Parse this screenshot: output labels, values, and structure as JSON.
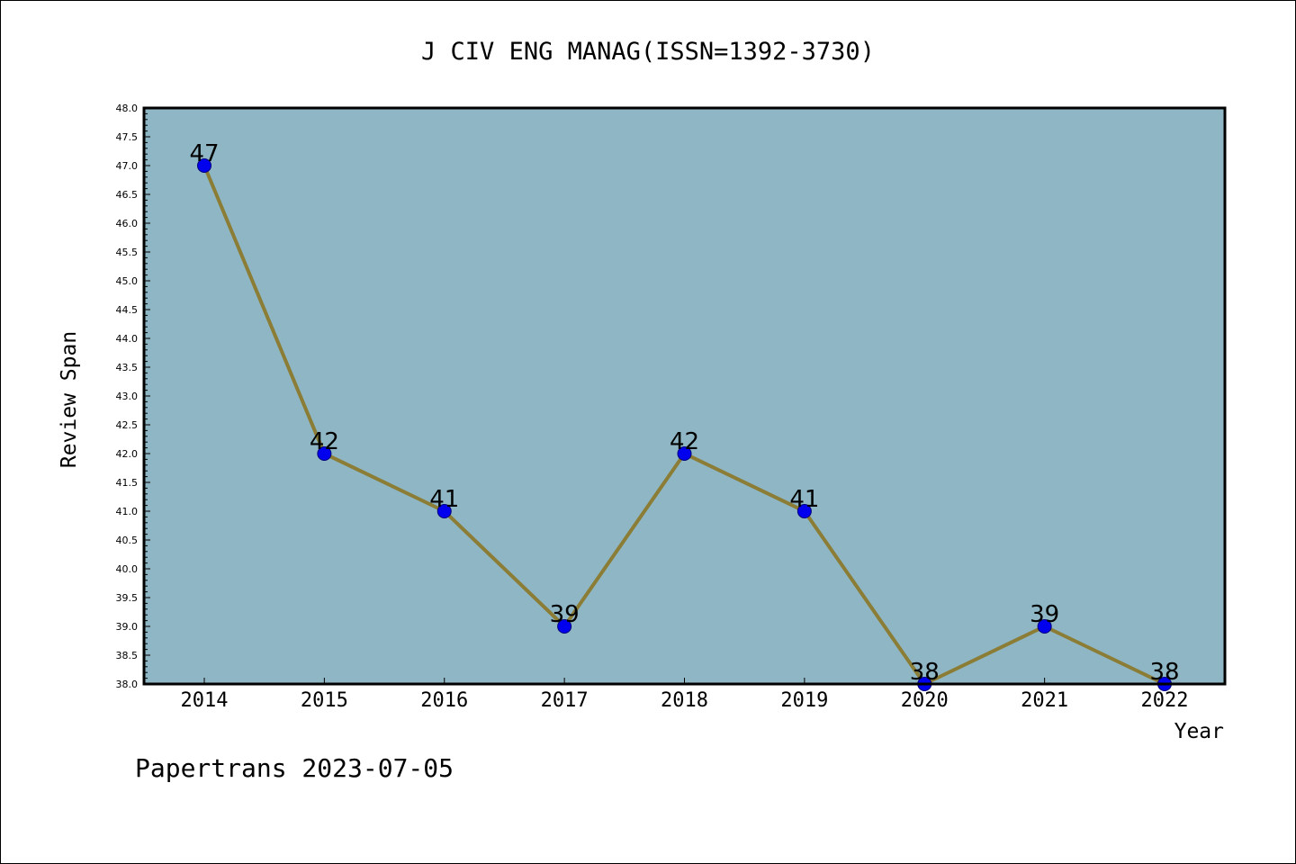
{
  "chart_data": {
    "type": "line",
    "title": "J CIV ENG MANAG(ISSN=1392-3730)",
    "xlabel": "Year",
    "ylabel": "Review Span",
    "x": [
      "2014",
      "2015",
      "2016",
      "2017",
      "2018",
      "2019",
      "2020",
      "2021",
      "2022"
    ],
    "series": [
      {
        "values": [
          47,
          42,
          41,
          39,
          42,
          41,
          38,
          39,
          38
        ]
      }
    ],
    "data_labels": [
      "47",
      "42",
      "41",
      "39",
      "42",
      "41",
      "38",
      "39",
      "38"
    ],
    "ylim": [
      38.0,
      48.0
    ],
    "y_ticks": [
      "38.0",
      "38.5",
      "39.0",
      "39.5",
      "40.0",
      "40.5",
      "41.0",
      "41.5",
      "42.0",
      "42.5",
      "43.0",
      "43.5",
      "44.0",
      "44.5",
      "45.0",
      "45.5",
      "46.0",
      "46.5",
      "47.0",
      "47.5",
      "48.0"
    ],
    "grid": false,
    "legend": "none",
    "colors": {
      "plot_background": "#8fb6c4",
      "line": "#8b7d35",
      "marker": "#0000ee",
      "marker_edge": "#00007a"
    }
  },
  "footer": {
    "watermark": "Papertrans 2023-07-05"
  }
}
